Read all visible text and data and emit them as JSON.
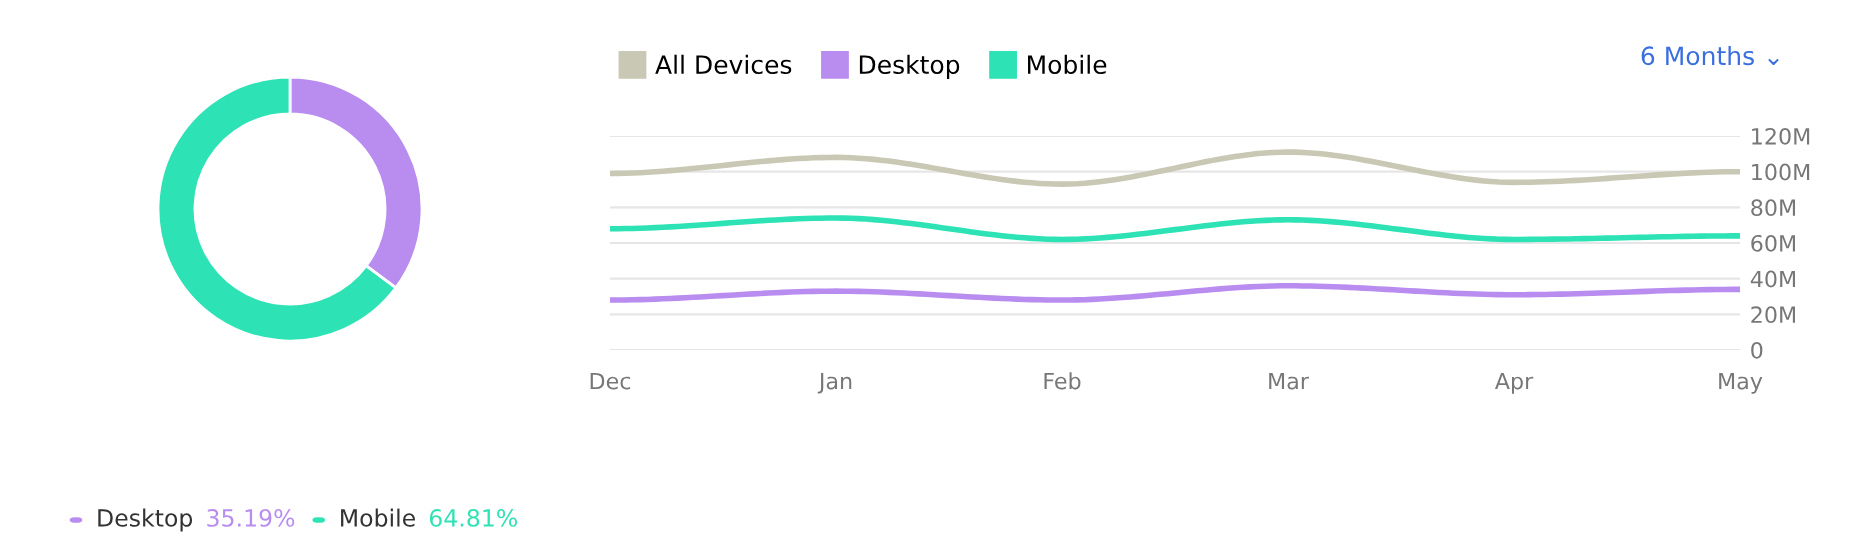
{
  "chart_data": [
    {
      "type": "donut",
      "categories": [
        "Desktop",
        "Mobile"
      ],
      "values": [
        35.19,
        64.81
      ],
      "colors": [
        "#b98cf0",
        "#2de2b4"
      ],
      "value_labels": [
        "35.19%",
        "64.81%"
      ],
      "legend": "bottom"
    },
    {
      "type": "line",
      "categories": [
        "Dec",
        "Jan",
        "Feb",
        "Mar",
        "Apr",
        "May"
      ],
      "series": [
        {
          "name": "All Devices",
          "color": "#c8c8b4",
          "values": [
            99,
            108,
            93,
            111,
            94,
            100
          ]
        },
        {
          "name": "Desktop",
          "color": "#b98cf0",
          "values": [
            28,
            33,
            28,
            36,
            31,
            34
          ]
        },
        {
          "name": "Mobile",
          "color": "#2de2b4",
          "values": [
            68,
            74,
            62,
            73,
            62,
            64
          ]
        }
      ],
      "ylim": [
        0,
        120
      ],
      "yticks": [
        {
          "value": 0,
          "label": "0"
        },
        {
          "value": 20,
          "label": "20M"
        },
        {
          "value": 40,
          "label": "40M"
        },
        {
          "value": 60,
          "label": "60M"
        },
        {
          "value": 80,
          "label": "80M"
        },
        {
          "value": 100,
          "label": "100M"
        },
        {
          "value": 120,
          "label": "120M"
        }
      ],
      "grid": "y",
      "legend": "top left",
      "marker": "none",
      "line_style": "solid",
      "annotations": [
        "6 Months ⌄"
      ]
    }
  ]
}
